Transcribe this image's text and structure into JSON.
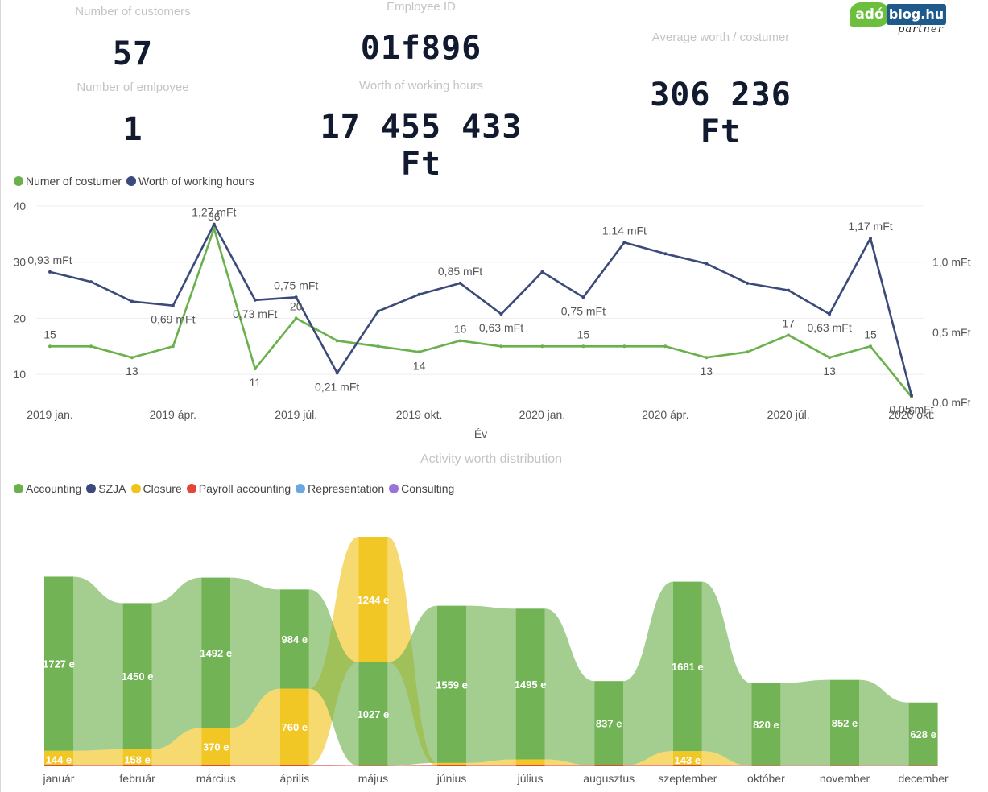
{
  "kpis": {
    "customers": {
      "title": "Number of customers",
      "value": "57"
    },
    "employees": {
      "title": "Number of emlpoyee",
      "value": "1"
    },
    "employee_id": {
      "title": "Employee ID",
      "value": "01f896"
    },
    "working_hours": {
      "title": "Worth of working hours",
      "value": "17 455 433 Ft"
    },
    "avg_worth": {
      "title": "Average worth / costumer",
      "value": "306 236 Ft"
    }
  },
  "logo": {
    "ado": "adó",
    "blog": "blog.hu",
    "partner": "partner"
  },
  "line_legend": [
    {
      "label": "Numer of costumer",
      "color": "#6ab04c"
    },
    {
      "label": "Worth of working hours",
      "color": "#3b4a7a"
    }
  ],
  "flow_title": "Activity worth distribution",
  "flow_legend": [
    {
      "label": "Accounting",
      "color": "#6ab04c"
    },
    {
      "label": "SZJA",
      "color": "#3b4a7a"
    },
    {
      "label": "Closure",
      "color": "#f0c419"
    },
    {
      "label": "Payroll accounting",
      "color": "#e0463c"
    },
    {
      "label": "Representation",
      "color": "#6aa8e0"
    },
    {
      "label": "Consulting",
      "color": "#9b72d8"
    }
  ],
  "chart_data": [
    {
      "type": "line",
      "xlabel": "Év",
      "x_ticks": [
        "2019 jan.",
        "2019 ápr.",
        "2019 júl.",
        "2019 okt.",
        "2020 jan.",
        "2020 ápr.",
        "2020 júl.",
        "2020 okt."
      ],
      "y_left_ticks": [
        "40",
        "30",
        "20",
        "10"
      ],
      "y_right_ticks": [
        "1,0 mFt",
        "0,5 mFt",
        "0,0 mFt"
      ],
      "ylim_left": [
        5,
        40
      ],
      "ylim_right": [
        0,
        1.4
      ],
      "x": [
        "2019-01",
        "2019-02",
        "2019-03",
        "2019-04",
        "2019-05",
        "2019-06",
        "2019-07",
        "2019-08",
        "2019-09",
        "2019-10",
        "2019-11",
        "2019-12",
        "2020-01",
        "2020-02",
        "2020-03",
        "2020-04",
        "2020-05",
        "2020-06",
        "2020-07",
        "2020-08",
        "2020-09",
        "2020-10"
      ],
      "series": [
        {
          "name": "Numer of costumer",
          "axis": "left",
          "color": "#6ab04c",
          "values": [
            15,
            15,
            13,
            15,
            36,
            11,
            20,
            16,
            15,
            14,
            16,
            15,
            15,
            15,
            15,
            15,
            13,
            14,
            17,
            13,
            15,
            6
          ],
          "labels": [
            "15",
            "",
            "13",
            "",
            "36",
            "11",
            "20",
            "",
            "",
            "14",
            "16",
            "",
            "",
            "15",
            "",
            "",
            "13",
            "",
            "17",
            "13",
            "15",
            "6"
          ]
        },
        {
          "name": "Worth of working hours",
          "axis": "right",
          "color": "#3b4a7a",
          "values": [
            0.93,
            0.86,
            0.72,
            0.69,
            1.27,
            0.73,
            0.75,
            0.21,
            0.65,
            0.77,
            0.85,
            0.63,
            0.93,
            0.75,
            1.14,
            1.06,
            0.99,
            0.85,
            0.8,
            0.63,
            1.17,
            0.05
          ],
          "labels": [
            "0,93 mFt",
            "",
            "",
            "0,69 mFt",
            "1,27 mFt",
            "0,73 mFt",
            "0,75 mFt",
            "0,21 mFt",
            "",
            "",
            "0,85 mFt",
            "0,63 mFt",
            "",
            "0,75 mFt",
            "1,14 mFt",
            "",
            "",
            "",
            "",
            "0,63 mFt",
            "1,17 mFt",
            "0,05 mFt"
          ]
        }
      ]
    },
    {
      "type": "area",
      "title": "Activity worth distribution",
      "categories": [
        "január",
        "február",
        "március",
        "április",
        "május",
        "június",
        "július",
        "augusztus",
        "szeptember",
        "október",
        "november",
        "december"
      ],
      "series": [
        {
          "name": "Accounting",
          "color": "#6ab04c",
          "values": [
            1727,
            1450,
            1492,
            984,
            1027,
            1559,
            1495,
            837,
            1681,
            820,
            852,
            628
          ],
          "labels": [
            "1727 e",
            "1450 e",
            "1492 e",
            "984 e",
            "1027 e",
            "1559 e",
            "1495 e",
            "837 e",
            "1681 e",
            "820 e",
            "852 e",
            "628 e"
          ]
        },
        {
          "name": "Closure",
          "color": "#f0c419",
          "values": [
            144,
            158,
            370,
            760,
            1244,
            25,
            60,
            0,
            143,
            0,
            0,
            0
          ],
          "labels": [
            "144 e",
            "158 e",
            "370 e",
            "760 e",
            "1244 e",
            "",
            "",
            "",
            "143 e",
            "",
            "",
            ""
          ]
        },
        {
          "name": "Payroll accounting",
          "color": "#e0463c",
          "values": [
            10,
            10,
            10,
            10,
            5,
            8,
            8,
            8,
            8,
            5,
            5,
            5
          ],
          "labels": [
            "",
            "",
            "",
            "",
            "",
            "",
            "",
            "",
            "",
            "",
            "",
            ""
          ]
        }
      ]
    }
  ]
}
